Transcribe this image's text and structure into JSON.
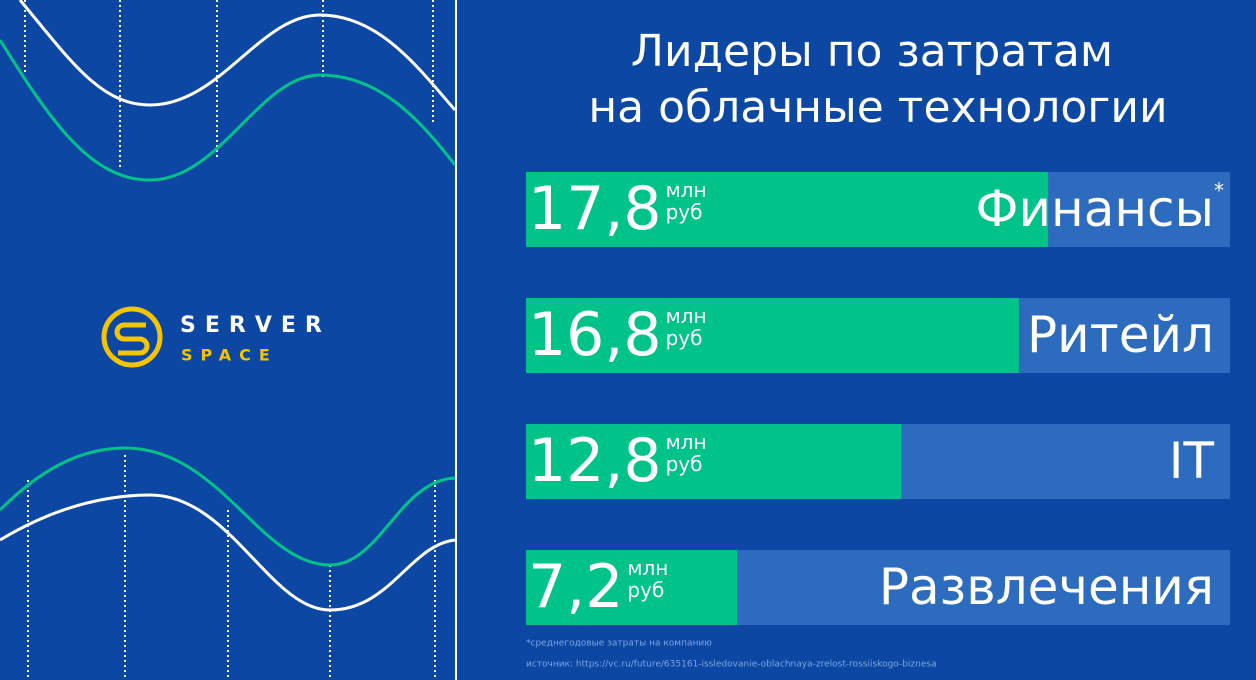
{
  "brand": {
    "line1": "SERVER",
    "line2": "SPACE"
  },
  "chart_data": {
    "type": "bar",
    "orientation": "horizontal",
    "title": [
      "Лидеры по затратам",
      "на облачные технологии"
    ],
    "categories": [
      "Финансы",
      "Ритейл",
      "IT",
      "Развлечения"
    ],
    "values": [
      17.8,
      16.8,
      12.8,
      7.2
    ],
    "value_labels": [
      "17,8",
      "16,8",
      "12,8",
      "7,2"
    ],
    "unit_top": "млн",
    "unit_bottom": "руб",
    "color": "#00c389",
    "track_color": "#2c6bbd",
    "xlim": [
      0,
      24
    ],
    "annotation": "*",
    "footnote": "*среднегодовые затраты на компанию",
    "source": "источник: https://vc.ru/future/635161-issledovanie-oblachnaya-zrelost-rossiiskogo-biznesa"
  }
}
